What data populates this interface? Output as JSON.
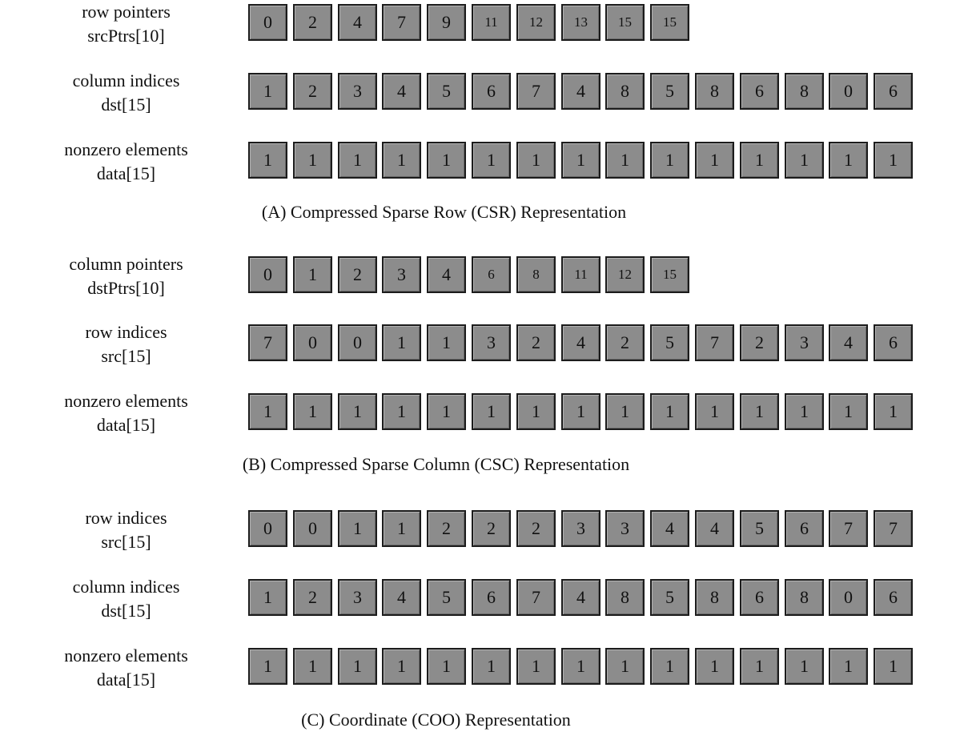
{
  "sections": [
    {
      "caption": "(A) Compressed Sparse Row (CSR) Representation",
      "rows": [
        {
          "label1": "row pointers",
          "label2": "srcPtrs[10]",
          "values": [
            "0",
            "2",
            "4",
            "7",
            "9",
            "11",
            "12",
            "13",
            "15",
            "15"
          ]
        },
        {
          "label1": "column indices",
          "label2": "dst[15]",
          "values": [
            "1",
            "2",
            "3",
            "4",
            "5",
            "6",
            "7",
            "4",
            "8",
            "5",
            "8",
            "6",
            "8",
            "0",
            "6"
          ]
        },
        {
          "label1": "nonzero elements",
          "label2": "data[15]",
          "values": [
            "1",
            "1",
            "1",
            "1",
            "1",
            "1",
            "1",
            "1",
            "1",
            "1",
            "1",
            "1",
            "1",
            "1",
            "1"
          ]
        }
      ]
    },
    {
      "caption": "(B) Compressed Sparse Column (CSC) Representation",
      "rows": [
        {
          "label1": "column pointers",
          "label2": "dstPtrs[10]",
          "values": [
            "0",
            "1",
            "2",
            "3",
            "4",
            "6",
            "8",
            "11",
            "12",
            "15"
          ]
        },
        {
          "label1": "row indices",
          "label2": "src[15]",
          "values": [
            "7",
            "0",
            "0",
            "1",
            "1",
            "3",
            "2",
            "4",
            "2",
            "5",
            "7",
            "2",
            "3",
            "4",
            "6"
          ]
        },
        {
          "label1": "nonzero elements",
          "label2": "data[15]",
          "values": [
            "1",
            "1",
            "1",
            "1",
            "1",
            "1",
            "1",
            "1",
            "1",
            "1",
            "1",
            "1",
            "1",
            "1",
            "1"
          ]
        }
      ]
    },
    {
      "caption": "(C) Coordinate (COO) Representation",
      "rows": [
        {
          "label1": "row indices",
          "label2": "src[15]",
          "values": [
            "0",
            "0",
            "1",
            "1",
            "2",
            "2",
            "2",
            "3",
            "3",
            "4",
            "4",
            "5",
            "6",
            "7",
            "7"
          ]
        },
        {
          "label1": "column indices",
          "label2": "dst[15]",
          "values": [
            "1",
            "2",
            "3",
            "4",
            "5",
            "6",
            "7",
            "4",
            "8",
            "5",
            "8",
            "6",
            "8",
            "0",
            "6"
          ]
        },
        {
          "label1": "nonzero elements",
          "label2": "data[15]",
          "values": [
            "1",
            "1",
            "1",
            "1",
            "1",
            "1",
            "1",
            "1",
            "1",
            "1",
            "1",
            "1",
            "1",
            "1",
            "1"
          ]
        }
      ]
    }
  ]
}
